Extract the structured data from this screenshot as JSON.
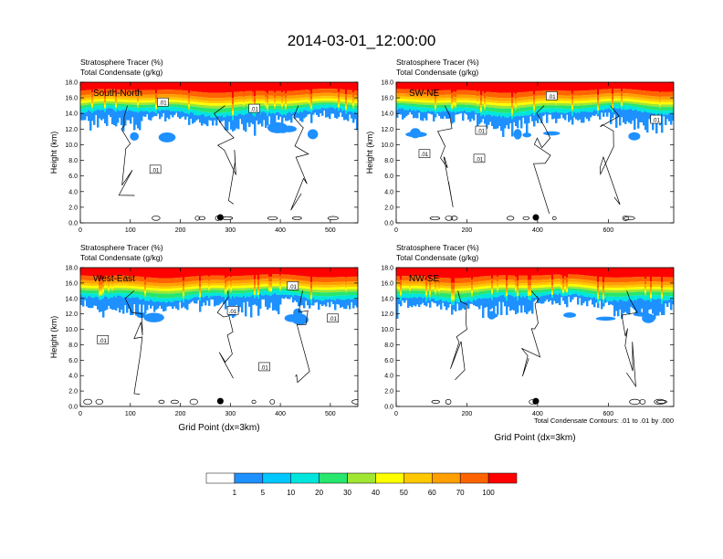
{
  "figure": {
    "title": "2014-03-01_12:00:00",
    "footnote": "Total Condensate Contours: .01 to .01 by .000",
    "colors": {
      "bands": [
        "#ffffff",
        "#1e90ff",
        "#00c8ff",
        "#00e6dc",
        "#28e66e",
        "#00dc00",
        "#a0e632",
        "#ffff00",
        "#ffc800",
        "#ffa000",
        "#ff6400",
        "#ff0000"
      ],
      "marker": "#000000",
      "contour": "#000000"
    }
  },
  "colorbar": {
    "labels": [
      "1",
      "5",
      "10",
      "20",
      "30",
      "40",
      "50",
      "60",
      "70",
      "100"
    ]
  },
  "chart_data": [
    {
      "type": "heatmap",
      "name": "South-North",
      "header_line1": "Stratosphere Tracer   (%)",
      "header_line2": "Total Condensate   (g/kg)",
      "ylabel": "Height (km)",
      "xlabel": "",
      "xlim": [
        0,
        555
      ],
      "ylim": [
        0,
        18
      ],
      "xticks": [
        0,
        100,
        200,
        300,
        400,
        500
      ],
      "yticks": [
        "0.0",
        "2.0",
        "4.0",
        "6.0",
        "8.0",
        "10.0",
        "12.0",
        "14.0",
        "16.0",
        "18.0"
      ],
      "marker_x": 280,
      "contour_labels": [
        {
          "text": ".01",
          "x": 165,
          "y": 15.4
        },
        {
          "text": ".01",
          "x": 348,
          "y": 14.6
        },
        {
          "text": ".01",
          "x": 150,
          "y": 6.8
        }
      ]
    },
    {
      "type": "heatmap",
      "name": "SW-NE",
      "header_line1": "Stratosphere Tracer   (%)",
      "header_line2": "Total Condensate   (g/kg)",
      "ylabel": "Height (km)",
      "xlabel": "",
      "xlim": [
        0,
        785
      ],
      "ylim": [
        0,
        18
      ],
      "xticks": [
        0,
        200,
        400,
        600
      ],
      "yticks": [
        "0.0",
        "2.0",
        "4.0",
        "6.0",
        "8.0",
        "10.0",
        "12.0",
        "14.0",
        "16.0",
        "18.0"
      ],
      "marker_x": 395,
      "contour_labels": [
        {
          "text": ".01",
          "x": 440,
          "y": 16.2
        },
        {
          "text": ".01",
          "x": 735,
          "y": 13.2
        },
        {
          "text": ".01",
          "x": 240,
          "y": 11.8
        },
        {
          "text": ".01",
          "x": 80,
          "y": 8.8
        },
        {
          "text": ".01",
          "x": 235,
          "y": 8.2
        }
      ]
    },
    {
      "type": "heatmap",
      "name": "West-East",
      "header_line1": "Stratosphere Tracer   (%)",
      "header_line2": "Total Condensate   (g/kg)",
      "ylabel": "Height (km)",
      "xlabel": "Grid Point (dx=3km)",
      "xlim": [
        0,
        555
      ],
      "ylim": [
        0,
        18
      ],
      "xticks": [
        0,
        100,
        200,
        300,
        400,
        500
      ],
      "yticks": [
        "0.0",
        "2.0",
        "4.0",
        "6.0",
        "8.0",
        "10.0",
        "12.0",
        "14.0",
        "16.0",
        "18.0"
      ],
      "marker_x": 280,
      "contour_labels": [
        {
          "text": ".01",
          "x": 425,
          "y": 15.6
        },
        {
          "text": ".01",
          "x": 305,
          "y": 12.4
        },
        {
          "text": ".01",
          "x": 505,
          "y": 11.4
        },
        {
          "text": ".01",
          "x": 45,
          "y": 8.6
        },
        {
          "text": ".01",
          "x": 368,
          "y": 5.1
        }
      ]
    },
    {
      "type": "heatmap",
      "name": "NW-SE",
      "header_line1": "Stratosphere Tracer   (%)",
      "header_line2": "Total Condensate   (g/kg)",
      "ylabel": "",
      "xlabel": "Grid Point (dx=3km)",
      "xlim": [
        0,
        785
      ],
      "ylim": [
        0,
        18
      ],
      "xticks": [
        0,
        200,
        400,
        600
      ],
      "yticks": [
        "0.0",
        "2.0",
        "4.0",
        "6.0",
        "8.0",
        "10.0",
        "12.0",
        "14.0",
        "16.0",
        "18.0"
      ],
      "marker_x": 395,
      "contour_labels": []
    }
  ]
}
